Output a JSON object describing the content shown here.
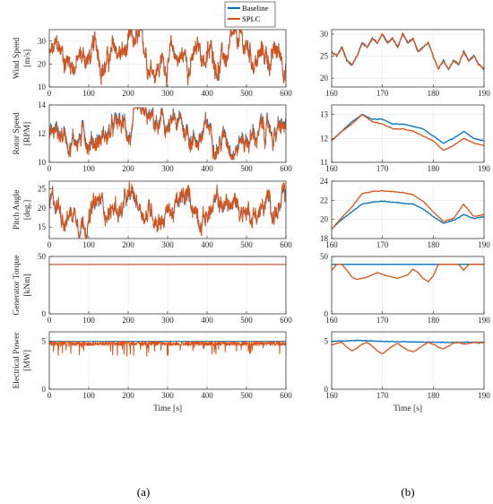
{
  "figure": {
    "panel_a_label": "(a)",
    "panel_b_label": "(b)",
    "colors": {
      "baseline": "#0072BD",
      "splc": "#D95319",
      "grid": "#e6e6e6",
      "axis": "#262626"
    }
  },
  "legend": {
    "items": [
      {
        "name": "Baseline",
        "color": "#0072BD"
      },
      {
        "name": "SPLC",
        "color": "#D95319"
      }
    ]
  },
  "chart_data": [
    {
      "type": "line",
      "panel": "a",
      "row": 0,
      "ylabel": "Wind Speed\n[m/s]",
      "xlabel": "",
      "xlim": [
        0,
        600
      ],
      "ylim": [
        10,
        35
      ],
      "xticks": [
        0,
        100,
        200,
        300,
        400,
        500,
        600
      ],
      "yticks": [
        10,
        20,
        30
      ],
      "series": [
        {
          "name": "Baseline",
          "mean": 23,
          "amp": 5,
          "kind": "wind"
        },
        {
          "name": "SPLC",
          "mean": 23,
          "amp": 5,
          "kind": "wind"
        }
      ]
    },
    {
      "type": "line",
      "panel": "a",
      "row": 1,
      "ylabel": "Rotor Speed\n[RPM]",
      "xlabel": "",
      "xlim": [
        0,
        600
      ],
      "ylim": [
        10,
        14
      ],
      "xticks": [
        0,
        100,
        200,
        300,
        400,
        500,
        600
      ],
      "yticks": [
        10,
        12,
        14
      ],
      "series": [
        {
          "name": "Baseline",
          "mean": 12.1,
          "amp": 0.7
        },
        {
          "name": "SPLC",
          "mean": 12.0,
          "amp": 0.7
        }
      ]
    },
    {
      "type": "line",
      "panel": "a",
      "row": 2,
      "ylabel": "Pitch Angle\n[deg.]",
      "xlabel": "",
      "xlim": [
        0,
        600
      ],
      "ylim": [
        12,
        27
      ],
      "xticks": [
        0,
        100,
        200,
        300,
        400,
        500,
        600
      ],
      "yticks": [
        15,
        20,
        25
      ],
      "series": [
        {
          "name": "Baseline",
          "mean": 20,
          "amp": 2.5
        },
        {
          "name": "SPLC",
          "mean": 20.2,
          "amp": 2.7
        }
      ]
    },
    {
      "type": "line",
      "panel": "a",
      "row": 3,
      "ylabel": "Generator Torque\n[kNm]",
      "xlabel": "",
      "xlim": [
        0,
        600
      ],
      "ylim": [
        0,
        50
      ],
      "xticks": [
        0,
        100,
        200,
        300,
        400,
        500,
        600
      ],
      "yticks": [
        0,
        50
      ],
      "series": [
        {
          "name": "Baseline",
          "value": 43.1
        },
        {
          "name": "SPLC",
          "value": 43.1
        }
      ]
    },
    {
      "type": "line",
      "panel": "a",
      "row": 4,
      "ylabel": "Electrical Power\n[MW]",
      "xlabel": "Time [s]",
      "xlim": [
        0,
        600
      ],
      "ylim": [
        0,
        6
      ],
      "xticks": [
        0,
        100,
        200,
        300,
        400,
        500,
        600
      ],
      "yticks": [
        0,
        5
      ],
      "series": [
        {
          "name": "Baseline",
          "value": 5.0
        },
        {
          "name": "SPLC",
          "mean": 4.8
        }
      ]
    },
    {
      "type": "line",
      "panel": "b",
      "row": 0,
      "ylabel": "",
      "xlabel": "",
      "xlim": [
        160,
        190
      ],
      "ylim": [
        18,
        31
      ],
      "xticks": [
        160,
        170,
        180,
        190
      ],
      "yticks": [
        20,
        25,
        30
      ],
      "series": [
        {
          "name": "Baseline",
          "x": [
            160,
            161,
            162,
            163,
            164,
            165,
            166,
            167,
            168,
            169,
            170,
            171,
            172,
            173,
            174,
            175,
            176,
            177,
            178,
            179,
            180,
            181,
            182,
            183,
            184,
            185,
            186,
            187,
            188,
            189,
            190
          ],
          "y": [
            26,
            25,
            27,
            24,
            23,
            25,
            28,
            27,
            29,
            28,
            30,
            28,
            29,
            27,
            30,
            28,
            29,
            26,
            27,
            28,
            25,
            22,
            24,
            22,
            24,
            23,
            26,
            24,
            25,
            23,
            22
          ]
        },
        {
          "name": "SPLC",
          "x": [
            160,
            161,
            162,
            163,
            164,
            165,
            166,
            167,
            168,
            169,
            170,
            171,
            172,
            173,
            174,
            175,
            176,
            177,
            178,
            179,
            180,
            181,
            182,
            183,
            184,
            185,
            186,
            187,
            188,
            189,
            190
          ],
          "y": [
            26,
            25,
            27,
            24,
            23,
            25,
            28,
            27,
            29,
            28,
            30,
            28,
            29,
            27,
            30,
            28,
            29,
            26,
            27,
            28,
            25,
            22,
            24,
            22,
            24,
            23,
            26,
            24,
            25,
            23,
            22
          ]
        }
      ]
    },
    {
      "type": "line",
      "panel": "b",
      "row": 1,
      "ylabel": "",
      "xlabel": "",
      "xlim": [
        160,
        190
      ],
      "ylim": [
        11,
        13.4
      ],
      "xticks": [
        160,
        170,
        180,
        190
      ],
      "yticks": [
        11,
        12,
        13
      ],
      "series": [
        {
          "name": "Baseline",
          "x": [
            160,
            162,
            164,
            166,
            168,
            170,
            172,
            174,
            176,
            178,
            180,
            182,
            184,
            186,
            188,
            190
          ],
          "y": [
            11.9,
            12.3,
            12.7,
            13.0,
            12.8,
            12.8,
            12.6,
            12.6,
            12.5,
            12.4,
            12.1,
            11.8,
            12.0,
            12.3,
            12.0,
            11.9
          ]
        },
        {
          "name": "SPLC",
          "x": [
            160,
            162,
            164,
            166,
            168,
            170,
            172,
            174,
            176,
            178,
            180,
            182,
            184,
            186,
            188,
            190
          ],
          "y": [
            11.9,
            12.3,
            12.6,
            13.0,
            12.7,
            12.6,
            12.4,
            12.4,
            12.3,
            12.1,
            11.9,
            11.5,
            11.7,
            12.0,
            11.8,
            11.7
          ]
        }
      ]
    },
    {
      "type": "line",
      "panel": "b",
      "row": 2,
      "ylabel": "",
      "xlabel": "",
      "xlim": [
        160,
        190
      ],
      "ylim": [
        18,
        24
      ],
      "xticks": [
        160,
        170,
        180,
        190
      ],
      "yticks": [
        18,
        20,
        22,
        24
      ],
      "series": [
        {
          "name": "Baseline",
          "x": [
            160,
            162,
            164,
            166,
            168,
            170,
            172,
            174,
            176,
            178,
            180,
            182,
            184,
            186,
            188,
            190
          ],
          "y": [
            19.0,
            20.0,
            20.8,
            21.6,
            21.8,
            21.9,
            21.8,
            21.7,
            21.6,
            21.1,
            20.3,
            19.6,
            19.9,
            20.5,
            20.1,
            20.3
          ]
        },
        {
          "name": "SPLC",
          "x": [
            160,
            162,
            164,
            166,
            168,
            170,
            172,
            174,
            176,
            178,
            180,
            182,
            184,
            186,
            188,
            190
          ],
          "y": [
            19.0,
            20.2,
            21.3,
            22.7,
            22.9,
            23.0,
            22.9,
            22.8,
            22.6,
            21.9,
            20.8,
            19.8,
            20.1,
            21.6,
            20.3,
            20.5
          ]
        }
      ]
    },
    {
      "type": "line",
      "panel": "b",
      "row": 3,
      "ylabel": "",
      "xlabel": "",
      "xlim": [
        160,
        190
      ],
      "ylim": [
        0,
        50
      ],
      "xticks": [
        160,
        170,
        180,
        190
      ],
      "yticks": [
        0,
        50
      ],
      "series": [
        {
          "name": "Baseline",
          "x": [
            160,
            190
          ],
          "y": [
            43.1,
            43.1
          ]
        },
        {
          "name": "SPLC",
          "x": [
            160,
            161,
            162,
            163,
            164,
            165,
            167,
            169,
            171,
            173,
            175,
            176,
            177,
            178,
            179,
            180,
            181,
            183,
            185,
            186,
            187,
            188,
            189,
            190
          ],
          "y": [
            38,
            43.1,
            43.1,
            38,
            32,
            30,
            32,
            36,
            33,
            31,
            34,
            39,
            36,
            31,
            28,
            33,
            43.1,
            43.1,
            43.1,
            38,
            43.1,
            43.1,
            43.1,
            43.1
          ]
        }
      ]
    },
    {
      "type": "line",
      "panel": "b",
      "row": 4,
      "ylabel": "",
      "xlabel": "Time [s]",
      "xlim": [
        160,
        190
      ],
      "ylim": [
        0,
        6
      ],
      "xticks": [
        160,
        170,
        180,
        190
      ],
      "yticks": [
        0,
        5
      ],
      "series": [
        {
          "name": "Baseline",
          "x": [
            160,
            165,
            170,
            175,
            180,
            185,
            190
          ],
          "y": [
            5.0,
            5.1,
            5.0,
            4.95,
            4.9,
            4.9,
            4.9
          ]
        },
        {
          "name": "SPLC",
          "x": [
            160,
            161,
            162,
            163,
            164,
            165,
            166,
            167,
            168,
            169,
            170,
            171,
            172,
            173,
            174,
            175,
            176,
            177,
            178,
            179,
            180,
            181,
            182,
            183,
            184,
            185,
            186,
            187,
            188,
            189,
            190
          ],
          "y": [
            4.6,
            4.8,
            4.9,
            4.4,
            4.0,
            4.3,
            4.7,
            4.9,
            4.5,
            4.0,
            3.7,
            4.1,
            4.5,
            4.8,
            4.4,
            4.1,
            3.9,
            4.2,
            4.6,
            4.9,
            4.7,
            4.4,
            4.2,
            4.5,
            4.8,
            4.9,
            4.7,
            4.8,
            4.9,
            4.8,
            4.9
          ]
        }
      ]
    }
  ]
}
